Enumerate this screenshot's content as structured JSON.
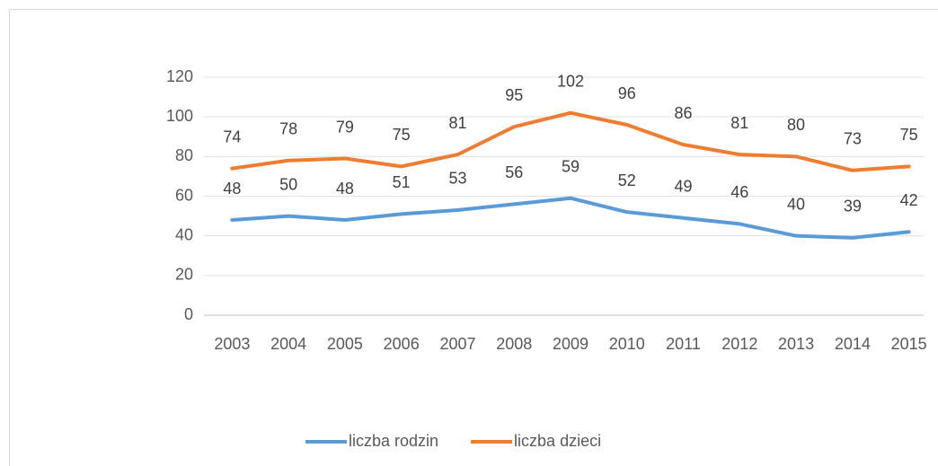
{
  "chart_data": {
    "type": "line",
    "categories": [
      "2003",
      "2004",
      "2005",
      "2006",
      "2007",
      "2008",
      "2009",
      "2010",
      "2011",
      "2012",
      "2013",
      "2014",
      "2015"
    ],
    "series": [
      {
        "name": "liczba rodzin",
        "color": "#5b9bd5",
        "values": [
          48,
          50,
          48,
          51,
          53,
          56,
          59,
          52,
          49,
          46,
          40,
          39,
          42
        ]
      },
      {
        "name": "liczba dzieci",
        "color": "#ed7d31",
        "values": [
          74,
          78,
          79,
          75,
          81,
          95,
          102,
          96,
          86,
          81,
          80,
          73,
          75
        ]
      }
    ],
    "ylim": [
      0,
      120
    ],
    "yticks": [
      0,
      20,
      40,
      60,
      80,
      100,
      120
    ],
    "grid": true,
    "legend": "bottom"
  }
}
